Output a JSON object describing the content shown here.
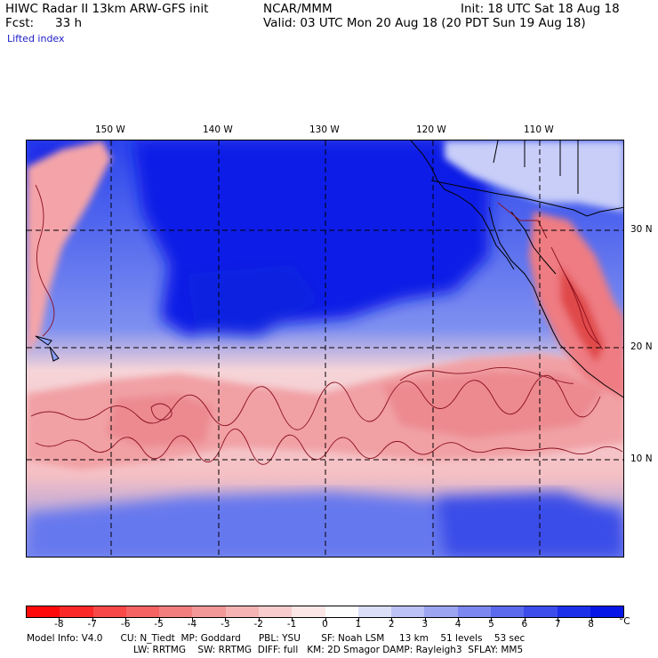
{
  "header": {
    "model": "HIWC Radar II 13km ARW-GFS init",
    "org": "NCAR/MMM",
    "init": "Init: 18 UTC Sat 18 Aug 18",
    "fcst_label": "Fcst:",
    "fcst_value": "33 h",
    "valid": "Valid: 03 UTC Mon 20 Aug 18 (20 PDT Sun 19 Aug 18)",
    "field": "Lifted index"
  },
  "map": {
    "lon_labels": [
      "150 W",
      "140 W",
      "130 W",
      "120 W",
      "110 W"
    ],
    "lat_labels": [
      "30 N",
      "20 N",
      "10 N"
    ],
    "colors": {
      "deep_blue": "#0a1ee6",
      "mid_blue": "#4a5ff0",
      "light_blue": "#aab4f5",
      "pale": "#f2eef6",
      "pink": "#f4a0a0",
      "red": "#e84040",
      "border": "#000000",
      "contour": "#8b1020"
    }
  },
  "colorbar": {
    "labels": [
      "-8",
      "-7",
      "-6",
      "-5",
      "-4",
      "-3",
      "-2",
      "-1",
      "0",
      "1",
      "2",
      "3",
      "4",
      "5",
      "6",
      "7",
      "8"
    ],
    "unit": "°C",
    "colors": [
      "#ff0a0a",
      "#fb2828",
      "#f84848",
      "#f56363",
      "#f27e7e",
      "#f29898",
      "#f5b3b3",
      "#f8cccc",
      "#fce6e6",
      "#fdfdfd",
      "#dcdff8",
      "#bcc2f5",
      "#9ca5f2",
      "#7c87f0",
      "#5c6aee",
      "#3c4dec",
      "#1c30ea",
      "#0616e6"
    ]
  },
  "model_info": {
    "line1": "Model Info: V4.0      CU: N_Tiedt  MP: Goddard      PBL: YSU       SF: Noah LSM     13 km    51 levels    53 sec",
    "line2": "LW: RRTMG    SW: RRTMG  DIFF: full   KM: 2D Smagor DAMP: Rayleigh3  SFLAY: MM5"
  }
}
